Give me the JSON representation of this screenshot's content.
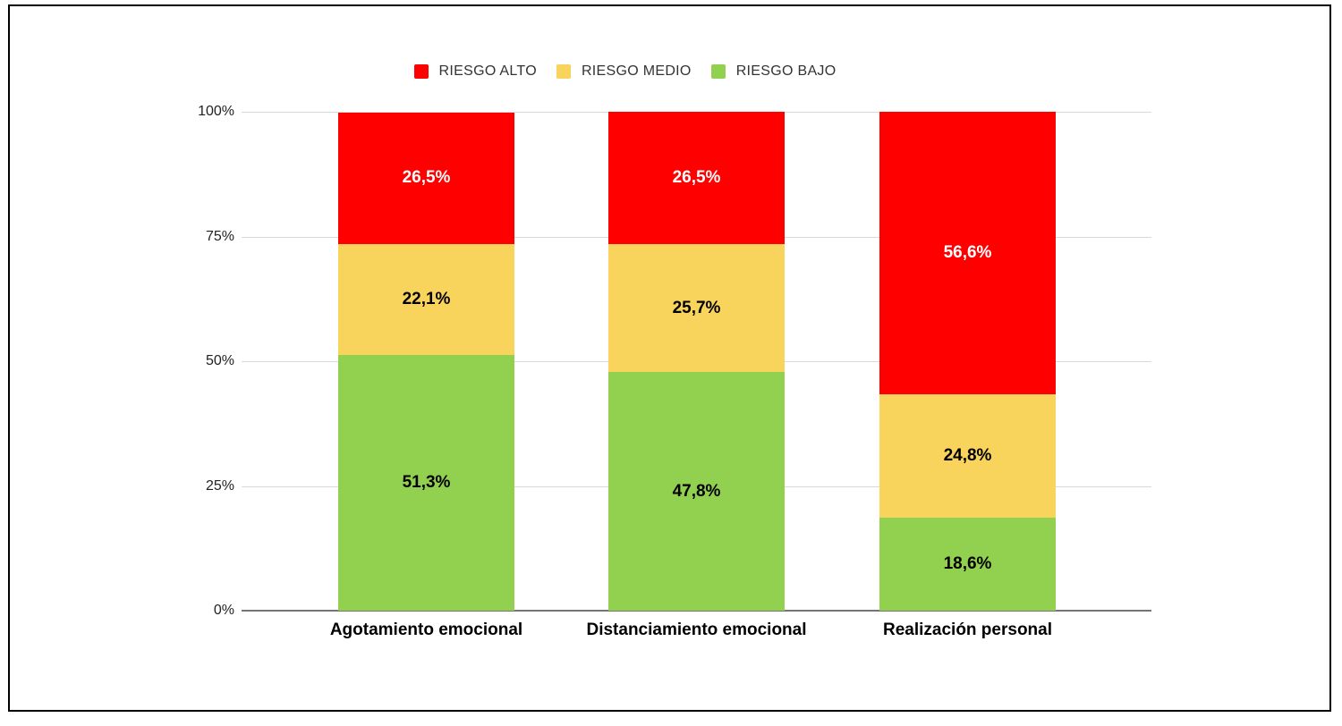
{
  "chart_data": {
    "type": "bar",
    "variant": "stacked-100",
    "title": "",
    "categories": [
      "Agotamiento emocional",
      "Distanciamiento emocional",
      "Realización personal"
    ],
    "series": [
      {
        "name": "RIESGO ALTO",
        "color": "#FF0000",
        "label_color": "#FFFFFF",
        "values": [
          26.5,
          26.5,
          56.6
        ],
        "labels": [
          "26,5%",
          "26,5%",
          "56,6%"
        ]
      },
      {
        "name": "RIESGO MEDIO",
        "color": "#F9D45C",
        "label_color": "#000000",
        "values": [
          22.1,
          25.7,
          24.8
        ],
        "labels": [
          "22,1%",
          "25,7%",
          "24,8%"
        ]
      },
      {
        "name": "RIESGO BAJO",
        "color": "#92D050",
        "label_color": "#000000",
        "values": [
          51.3,
          47.8,
          18.6
        ],
        "labels": [
          "51,3%",
          "47,8%",
          "18,6%"
        ]
      }
    ],
    "stack_order_bottom_to_top": [
      "RIESGO BAJO",
      "RIESGO MEDIO",
      "RIESGO ALTO"
    ],
    "y_axis": {
      "tick_labels": [
        "0%",
        "25%",
        "50%",
        "75%",
        "100%"
      ],
      "tick_values": [
        0,
        25,
        50,
        75,
        100
      ],
      "min": 0,
      "max": 100
    },
    "xlabel": "",
    "ylabel": "",
    "grid": true,
    "legend_position": "top-center",
    "colors": {
      "background": "#FFFFFF",
      "frame_border": "#000000",
      "gridline": "#D9D9D9",
      "axis_baseline": "#757575",
      "tick_text": "#222222",
      "legend_text": "#333333",
      "category_text": "#000000"
    }
  }
}
